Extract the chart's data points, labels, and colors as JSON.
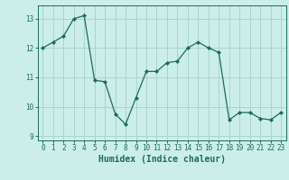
{
  "x": [
    0,
    1,
    2,
    3,
    4,
    5,
    6,
    7,
    8,
    9,
    10,
    11,
    12,
    13,
    14,
    15,
    16,
    17,
    18,
    19,
    20,
    21,
    22,
    23
  ],
  "y": [
    12.0,
    12.2,
    12.4,
    13.0,
    13.1,
    10.9,
    10.85,
    9.75,
    9.4,
    10.3,
    11.2,
    11.2,
    11.5,
    11.55,
    12.0,
    12.2,
    12.0,
    11.85,
    9.55,
    9.8,
    9.8,
    9.6,
    9.55,
    9.8
  ],
  "line_color": "#1a6b5a",
  "marker": "D",
  "marker_size": 2.0,
  "bg_color": "#cceee8",
  "grid_color": "#aad4cc",
  "xlabel": "Humidex (Indice chaleur)",
  "xlim": [
    -0.5,
    23.5
  ],
  "ylim": [
    8.85,
    13.45
  ],
  "yticks": [
    9,
    10,
    11,
    12,
    13
  ],
  "xticks": [
    0,
    1,
    2,
    3,
    4,
    5,
    6,
    7,
    8,
    9,
    10,
    11,
    12,
    13,
    14,
    15,
    16,
    17,
    18,
    19,
    20,
    21,
    22,
    23
  ],
  "tick_fontsize": 5.5,
  "label_fontsize": 7.0
}
